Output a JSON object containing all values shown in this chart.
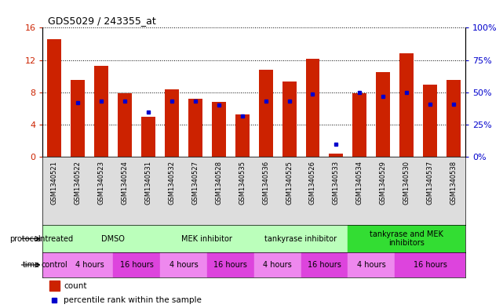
{
  "title": "GDS5029 / 243355_at",
  "samples": [
    "GSM1340521",
    "GSM1340522",
    "GSM1340523",
    "GSM1340524",
    "GSM1340531",
    "GSM1340532",
    "GSM1340527",
    "GSM1340528",
    "GSM1340535",
    "GSM1340536",
    "GSM1340525",
    "GSM1340526",
    "GSM1340533",
    "GSM1340534",
    "GSM1340529",
    "GSM1340530",
    "GSM1340537",
    "GSM1340538"
  ],
  "counts": [
    14.6,
    9.5,
    11.3,
    7.9,
    5.0,
    8.4,
    7.2,
    6.8,
    5.3,
    10.8,
    9.3,
    12.2,
    0.4,
    7.9,
    10.5,
    12.8,
    9.0,
    9.5
  ],
  "percentiles": [
    null,
    42,
    43,
    43,
    35,
    43,
    43,
    40,
    32,
    43,
    43,
    49,
    10,
    50,
    47,
    50,
    41,
    41
  ],
  "red_color": "#cc2200",
  "blue_color": "#0000cc",
  "ylim_left": [
    0,
    16
  ],
  "ylim_right": [
    0,
    100
  ],
  "yticks_left": [
    0,
    4,
    8,
    12,
    16
  ],
  "yticks_right": [
    0,
    25,
    50,
    75,
    100
  ],
  "proto_groups": [
    {
      "label": "untreated",
      "s": 0,
      "e": 0,
      "color": "#bbffbb"
    },
    {
      "label": "DMSO",
      "s": 1,
      "e": 4,
      "color": "#bbffbb"
    },
    {
      "label": "MEK inhibitor",
      "s": 5,
      "e": 8,
      "color": "#bbffbb"
    },
    {
      "label": "tankyrase inhibitor",
      "s": 9,
      "e": 12,
      "color": "#bbffbb"
    },
    {
      "label": "tankyrase and MEK\ninhibitors",
      "s": 13,
      "e": 17,
      "color": "#33dd33"
    }
  ],
  "time_groups": [
    {
      "label": "control",
      "s": 0,
      "e": 0,
      "color": "#ee88ee"
    },
    {
      "label": "4 hours",
      "s": 1,
      "e": 2,
      "color": "#ee88ee"
    },
    {
      "label": "16 hours",
      "s": 3,
      "e": 4,
      "color": "#dd44dd"
    },
    {
      "label": "4 hours",
      "s": 5,
      "e": 6,
      "color": "#ee88ee"
    },
    {
      "label": "16 hours",
      "s": 7,
      "e": 8,
      "color": "#dd44dd"
    },
    {
      "label": "4 hours",
      "s": 9,
      "e": 10,
      "color": "#ee88ee"
    },
    {
      "label": "16 hours",
      "s": 11,
      "e": 12,
      "color": "#dd44dd"
    },
    {
      "label": "4 hours",
      "s": 13,
      "e": 14,
      "color": "#ee88ee"
    },
    {
      "label": "16 hours",
      "s": 15,
      "e": 17,
      "color": "#dd44dd"
    }
  ],
  "sample_label_color": "#dddddd",
  "bar_width": 0.6,
  "label_fontsize": 6,
  "tick_fontsize": 8,
  "row_fontsize": 7
}
